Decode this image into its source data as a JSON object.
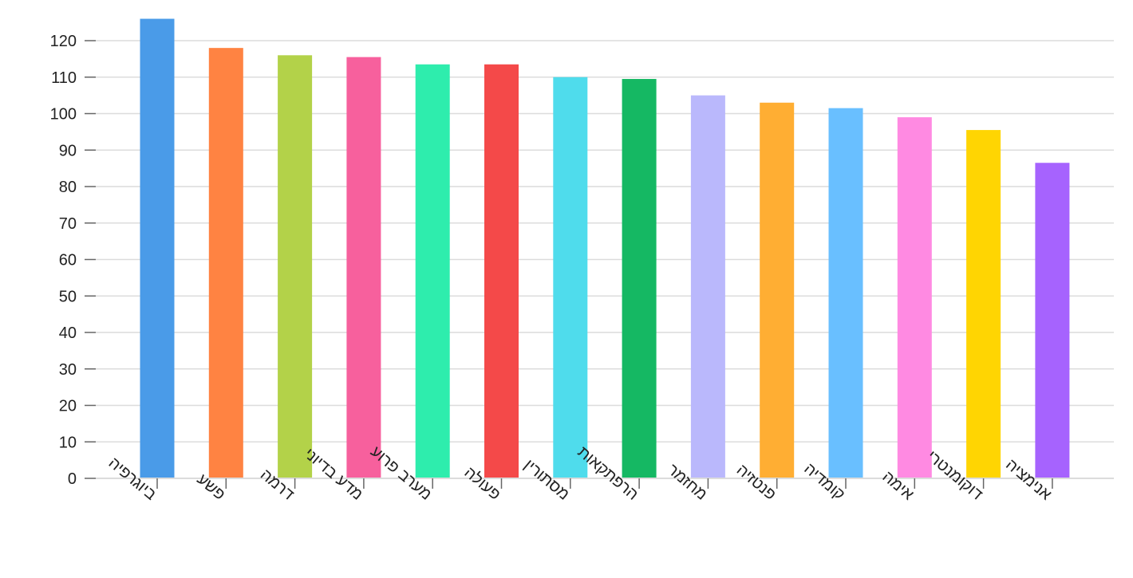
{
  "chart_data": {
    "type": "bar",
    "title": "",
    "xlabel": "",
    "ylabel": "",
    "ylim": [
      0,
      125
    ],
    "yticks": [
      0,
      10,
      20,
      30,
      40,
      50,
      60,
      70,
      80,
      90,
      100,
      110,
      120
    ],
    "grid": true,
    "categories": [
      "ביוגרפיה",
      "פשע",
      "דרמה",
      "מדע בדיוני",
      "מערב פרוע",
      "פעולה",
      "מסתורין",
      "הרפתקאות",
      "מחזמר",
      "פנטזיה",
      "קומדיה",
      "אימה",
      "דוקומנטרי",
      "אנימציה"
    ],
    "values": [
      126,
      118,
      116,
      115.5,
      113.5,
      113.5,
      110,
      109.5,
      105,
      103,
      101.5,
      99,
      95.5,
      86.5
    ],
    "colors": [
      "#4A9BE8",
      "#FF8342",
      "#B3D249",
      "#F7609D",
      "#2EEDAD",
      "#F44949",
      "#4FDCEC",
      "#15B863",
      "#BAB8FC",
      "#FFAE33",
      "#69BFFF",
      "#FF8AE2",
      "#FFD502",
      "#A663FE"
    ],
    "grid_color": "#dcdcdc",
    "axis_color": "#666666",
    "label_color": "#222222"
  }
}
